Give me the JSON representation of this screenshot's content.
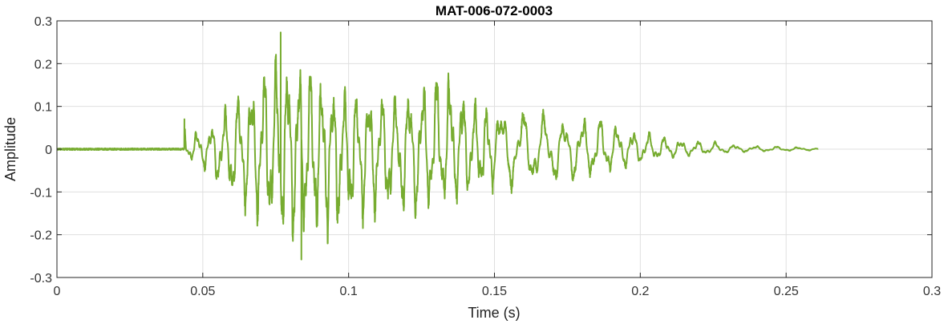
{
  "chart_data": {
    "type": "line",
    "title": "MAT-006-072-0003",
    "xlabel": "Time (s)",
    "ylabel": "Amplitude",
    "xlim": [
      0,
      0.3
    ],
    "ylim": [
      -0.3,
      0.3
    ],
    "xticks": [
      0,
      0.05,
      0.1,
      0.15,
      0.2,
      0.25,
      0.3
    ],
    "xtick_labels": [
      "0",
      "0.05",
      "0.1",
      "0.15",
      "0.2",
      "0.25",
      "0.3"
    ],
    "yticks": [
      -0.3,
      -0.2,
      -0.1,
      0,
      0.1,
      0.2,
      0.3
    ],
    "ytick_labels": [
      "-0.3",
      "-0.2",
      "-0.1",
      "0",
      "0.1",
      "0.2",
      "0.3"
    ],
    "grid": true,
    "line_color": "#77ac30",
    "signal_duration_s": 0.261,
    "onset_s": 0.0437,
    "peak_max": 0.273,
    "peak_max_time_s": 0.0767,
    "peak_min": -0.258,
    "peak_min_time_s": 0.0838,
    "envelope": {
      "t": [
        0,
        0.043,
        0.0437,
        0.05,
        0.06,
        0.07,
        0.077,
        0.085,
        0.095,
        0.105,
        0.115,
        0.125,
        0.135,
        0.145,
        0.155,
        0.165,
        0.175,
        0.185,
        0.195,
        0.205,
        0.215,
        0.225,
        0.235,
        0.245,
        0.255,
        0.261
      ],
      "upper": [
        0.003,
        0.003,
        0.07,
        0.04,
        0.13,
        0.22,
        0.27,
        0.24,
        0.17,
        0.16,
        0.14,
        0.19,
        0.22,
        0.12,
        0.12,
        0.1,
        0.08,
        0.09,
        0.06,
        0.04,
        0.025,
        0.02,
        0.01,
        0.008,
        0.005,
        0.003
      ],
      "lower": [
        -0.003,
        -0.003,
        -0.02,
        -0.05,
        -0.15,
        -0.21,
        -0.24,
        -0.26,
        -0.24,
        -0.2,
        -0.19,
        -0.18,
        -0.15,
        -0.12,
        -0.11,
        -0.1,
        -0.09,
        -0.08,
        -0.05,
        -0.03,
        -0.02,
        -0.012,
        -0.008,
        -0.006,
        -0.004,
        -0.003
      ]
    }
  }
}
